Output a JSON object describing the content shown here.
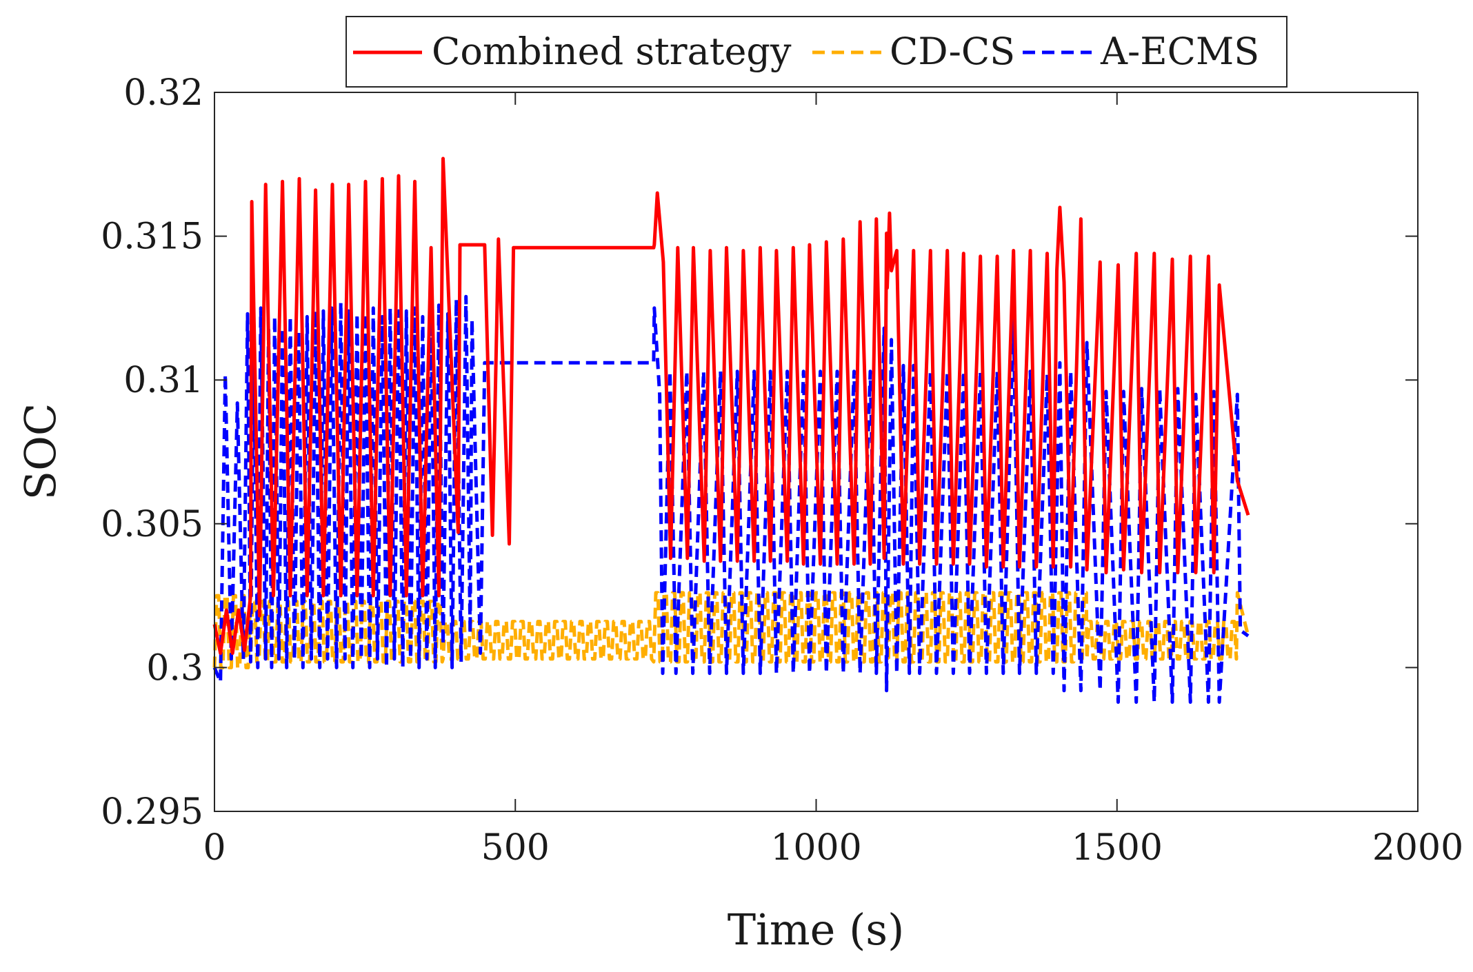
{
  "chart_data": {
    "type": "line",
    "title": "",
    "xlabel": "Time (s)",
    "ylabel": "SOC",
    "xlim": [
      0,
      2000
    ],
    "ylim": [
      0.295,
      0.32
    ],
    "xticks": [
      0,
      500,
      1000,
      1500,
      2000
    ],
    "xtick_labels": [
      "0",
      "500",
      "1000",
      "1500",
      "2000"
    ],
    "yticks": [
      0.295,
      0.3,
      0.305,
      0.31,
      0.315,
      0.32
    ],
    "ytick_labels": [
      "0.295",
      "0.3",
      "0.305",
      "0.31",
      "0.315",
      "0.32"
    ],
    "grid": false,
    "legend_position": "top-center-outside",
    "series": [
      {
        "name": "Combined strategy",
        "color": "#ff0000",
        "style": "solid",
        "x": [
          0,
          10,
          20,
          30,
          40,
          50,
          60,
          62,
          75,
          85,
          98,
          113,
          126,
          141,
          154,
          168,
          181,
          196,
          210,
          223,
          237,
          251,
          264,
          279,
          292,
          306,
          319,
          333,
          346,
          360,
          373,
          380,
          405,
          408,
          408.5,
          449,
          462,
          472,
          490,
          497,
          498,
          730,
          731,
          736,
          746,
          758,
          770,
          786,
          796,
          814,
          824,
          841,
          851,
          869,
          879,
          897,
          907,
          924,
          934,
          952,
          962,
          979,
          989,
          1007,
          1017,
          1035,
          1045,
          1063,
          1073,
          1090,
          1100,
          1113,
          1117,
          1118,
          1122,
          1125,
          1134,
          1145,
          1162,
          1172,
          1190,
          1200,
          1218,
          1228,
          1245,
          1255,
          1273,
          1283,
          1301,
          1311,
          1328,
          1338,
          1356,
          1366,
          1384,
          1394,
          1400,
          1405,
          1412,
          1423,
          1440,
          1450,
          1472,
          1482,
          1502,
          1511,
          1532,
          1541,
          1562,
          1571,
          1592,
          1601,
          1622,
          1631,
          1652,
          1661,
          1670,
          1700,
          1718
        ],
        "values": [
          0.3015,
          0.3005,
          0.302,
          0.3005,
          0.302,
          0.3006,
          0.3025,
          0.3162,
          0.3018,
          0.3168,
          0.3025,
          0.3169,
          0.3025,
          0.317,
          0.3025,
          0.3166,
          0.3025,
          0.3168,
          0.3025,
          0.3168,
          0.3025,
          0.3169,
          0.3025,
          0.317,
          0.3025,
          0.3171,
          0.3025,
          0.3169,
          0.3025,
          0.3146,
          0.3025,
          0.3177,
          0.3047,
          0.3147,
          0.3147,
          0.3147,
          0.3046,
          0.3149,
          0.3043,
          0.3146,
          0.3146,
          0.3146,
          0.3147,
          0.3165,
          0.3141,
          0.3038,
          0.3146,
          0.3038,
          0.3146,
          0.3037,
          0.3145,
          0.3037,
          0.3146,
          0.3037,
          0.3145,
          0.3037,
          0.3146,
          0.3037,
          0.3145,
          0.3037,
          0.3146,
          0.3036,
          0.3147,
          0.3036,
          0.3148,
          0.3036,
          0.3149,
          0.3036,
          0.3155,
          0.3036,
          0.3156,
          0.3038,
          0.3151,
          0.3132,
          0.3158,
          0.3138,
          0.3145,
          0.3036,
          0.3145,
          0.3036,
          0.3145,
          0.3036,
          0.3145,
          0.3036,
          0.3144,
          0.3036,
          0.3143,
          0.3035,
          0.3143,
          0.3035,
          0.3145,
          0.3035,
          0.3145,
          0.3035,
          0.3144,
          0.3035,
          0.3138,
          0.316,
          0.3134,
          0.3035,
          0.3156,
          0.3034,
          0.3141,
          0.3033,
          0.314,
          0.3034,
          0.3144,
          0.3033,
          0.3144,
          0.3033,
          0.3142,
          0.3033,
          0.3143,
          0.3033,
          0.3143,
          0.3033,
          0.3133,
          0.3065,
          0.3053
        ]
      },
      {
        "name": "CD-CS",
        "color": "#ffae00",
        "style": "dashed",
        "x": [
          0,
          50,
          60,
          380,
          470,
          730,
          735,
          1120,
          1125,
          1450,
          1455,
          1718
        ],
        "values": [
          0.3,
          0.3,
          0.3,
          0.3,
          0.3,
          0.3,
          0.3,
          0.3,
          0.3,
          0.3,
          0.3,
          0.301
        ],
        "oscillation": {
          "segments": [
            {
              "x_start": 0,
              "x_end": 60,
              "low": 0.3,
              "high": 0.3025
            },
            {
              "x_start": 60,
              "x_end": 380,
              "low": 0.3002,
              "high": 0.3023
            },
            {
              "x_start": 380,
              "x_end": 730,
              "low": 0.3003,
              "high": 0.3016
            },
            {
              "x_start": 730,
              "x_end": 1120,
              "low": 0.3002,
              "high": 0.3026
            },
            {
              "x_start": 1120,
              "x_end": 1450,
              "low": 0.3002,
              "high": 0.3026
            },
            {
              "x_start": 1450,
              "x_end": 1700,
              "low": 0.3003,
              "high": 0.3016
            }
          ],
          "end_value": 0.3011
        }
      },
      {
        "name": "A-ECMS",
        "color": "#0000ff",
        "style": "dashed",
        "x": [
          0,
          10,
          18,
          28,
          38,
          48,
          55,
          60,
          65,
          72,
          77,
          85,
          90,
          95,
          100,
          107,
          113,
          120,
          126,
          133,
          140,
          147,
          154,
          161,
          168,
          175,
          181,
          188,
          195,
          203,
          210,
          217,
          223,
          230,
          237,
          244,
          251,
          258,
          264,
          271,
          279,
          286,
          292,
          299,
          306,
          313,
          319,
          326,
          333,
          340,
          346,
          353,
          360,
          367,
          373,
          380,
          388,
          395,
          402,
          410,
          418,
          425,
          428,
          442,
          449,
          730,
          731,
          740,
          745,
          757,
          767,
          785,
          795,
          813,
          823,
          841,
          851,
          869,
          879,
          897,
          907,
          924,
          934,
          952,
          962,
          979,
          989,
          1007,
          1017,
          1035,
          1045,
          1063,
          1073,
          1090,
          1100,
          1113,
          1117,
          1125,
          1134,
          1145,
          1155,
          1162,
          1172,
          1190,
          1200,
          1218,
          1228,
          1245,
          1255,
          1273,
          1283,
          1301,
          1311,
          1328,
          1338,
          1356,
          1366,
          1384,
          1394,
          1405,
          1412,
          1423,
          1440,
          1450,
          1472,
          1482,
          1502,
          1511,
          1532,
          1541,
          1562,
          1571,
          1592,
          1601,
          1622,
          1631,
          1652,
          1661,
          1670,
          1700,
          1705,
          1718
        ],
        "values": [
          0.3,
          0.2995,
          0.3102,
          0.3003,
          0.3092,
          0.3003,
          0.3123,
          0.3002,
          0.3112,
          0.3,
          0.3125,
          0.3003,
          0.3118,
          0.3,
          0.3122,
          0.3003,
          0.3118,
          0.3,
          0.3122,
          0.3003,
          0.3117,
          0.3,
          0.3122,
          0.3003,
          0.3124,
          0.3,
          0.3124,
          0.3003,
          0.3125,
          0.3,
          0.3127,
          0.3003,
          0.3124,
          0.3,
          0.3123,
          0.3003,
          0.3123,
          0.3,
          0.3125,
          0.3003,
          0.3122,
          0.3,
          0.3125,
          0.3003,
          0.3124,
          0.3,
          0.3124,
          0.3003,
          0.3125,
          0.3,
          0.3122,
          0.3003,
          0.3127,
          0.3,
          0.3126,
          0.3008,
          0.3123,
          0.3,
          0.3128,
          0.3002,
          0.3129,
          0.3012,
          0.3121,
          0.3005,
          0.3106,
          0.3106,
          0.3125,
          0.3095,
          0.2998,
          0.3103,
          0.2998,
          0.3103,
          0.2998,
          0.3103,
          0.2998,
          0.3103,
          0.2998,
          0.3103,
          0.2998,
          0.3103,
          0.2998,
          0.3103,
          0.2998,
          0.3103,
          0.2998,
          0.3103,
          0.2998,
          0.3103,
          0.2998,
          0.3103,
          0.2998,
          0.3103,
          0.2998,
          0.3103,
          0.2998,
          0.3118,
          0.2992,
          0.3114,
          0.2998,
          0.3105,
          0.2998,
          0.3105,
          0.2998,
          0.3103,
          0.2998,
          0.3103,
          0.2998,
          0.3103,
          0.2998,
          0.3103,
          0.2998,
          0.3103,
          0.2998,
          0.3121,
          0.2998,
          0.3103,
          0.2998,
          0.3102,
          0.2998,
          0.3106,
          0.2992,
          0.3103,
          0.2992,
          0.3113,
          0.2992,
          0.3096,
          0.2988,
          0.3096,
          0.2988,
          0.3097,
          0.2988,
          0.3097,
          0.2988,
          0.3097,
          0.2988,
          0.3095,
          0.2988,
          0.3096,
          0.2988,
          0.3095,
          0.3013,
          0.3011
        ]
      }
    ]
  }
}
